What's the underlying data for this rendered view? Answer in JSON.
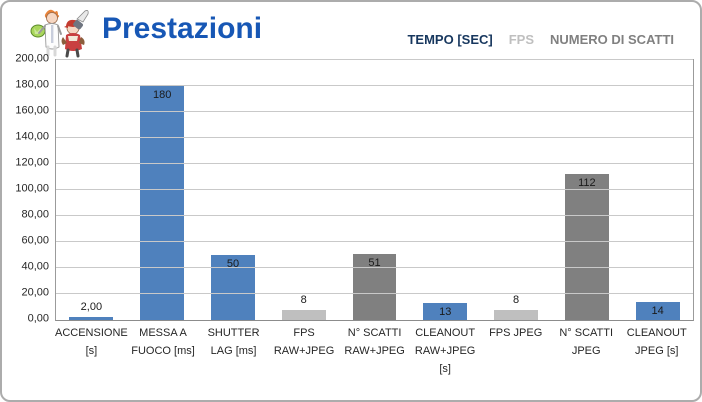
{
  "header": {
    "title": "Prestazioni"
  },
  "legend": {
    "items": [
      {
        "label": "TEMPO [SEC]",
        "color": "#17375E"
      },
      {
        "label": "FPS",
        "color": "#BFBFBF"
      },
      {
        "label": "NUMERO DI SCATTI",
        "color": "#808080"
      }
    ]
  },
  "chart_data": {
    "type": "bar",
    "title": "Prestazioni",
    "xlabel": "",
    "ylabel": "",
    "ylim": [
      0,
      200
    ],
    "ytick_step": 20,
    "ytick_labels": [
      "0,00",
      "20,00",
      "40,00",
      "60,00",
      "80,00",
      "100,00",
      "120,00",
      "140,00",
      "160,00",
      "180,00",
      "200,00"
    ],
    "grid": true,
    "legend_position": "top-right",
    "series": [
      {
        "name": "TEMPO [SEC]",
        "color": "#4F81BD"
      },
      {
        "name": "FPS",
        "color": "#BFBFBF"
      },
      {
        "name": "NUMERO DI SCATTI",
        "color": "#808080"
      }
    ],
    "points": [
      {
        "category_lines": [
          "ACCENSIONE",
          "[s]"
        ],
        "series": "TEMPO [SEC]",
        "value": 2,
        "data_label": "2,00",
        "label_placement": "outside"
      },
      {
        "category_lines": [
          "MESSA A",
          "FUOCO [ms]"
        ],
        "series": "TEMPO [SEC]",
        "value": 180,
        "data_label": "180",
        "label_placement": "inside"
      },
      {
        "category_lines": [
          "SHUTTER",
          "LAG [ms]"
        ],
        "series": "TEMPO [SEC]",
        "value": 50,
        "data_label": "50",
        "label_placement": "inside"
      },
      {
        "category_lines": [
          "FPS",
          "RAW+JPEG"
        ],
        "series": "FPS",
        "value": 8,
        "data_label": "8",
        "label_placement": "outside"
      },
      {
        "category_lines": [
          "N° SCATTI",
          "RAW+JPEG"
        ],
        "series": "NUMERO DI SCATTI",
        "value": 51,
        "data_label": "51",
        "label_placement": "inside"
      },
      {
        "category_lines": [
          "CLEANOUT",
          "RAW+JPEG",
          "[s]"
        ],
        "series": "TEMPO [SEC]",
        "value": 13,
        "data_label": "13",
        "label_placement": "inside"
      },
      {
        "category_lines": [
          "FPS JPEG"
        ],
        "series": "FPS",
        "value": 8,
        "data_label": "8",
        "label_placement": "outside"
      },
      {
        "category_lines": [
          "N° SCATTI",
          "JPEG"
        ],
        "series": "NUMERO DI SCATTI",
        "value": 112,
        "data_label": "112",
        "label_placement": "inside"
      },
      {
        "category_lines": [
          "CLEANOUT",
          "JPEG [s]"
        ],
        "series": "TEMPO [SEC]",
        "value": 14,
        "data_label": "14",
        "label_placement": "inside"
      }
    ]
  }
}
